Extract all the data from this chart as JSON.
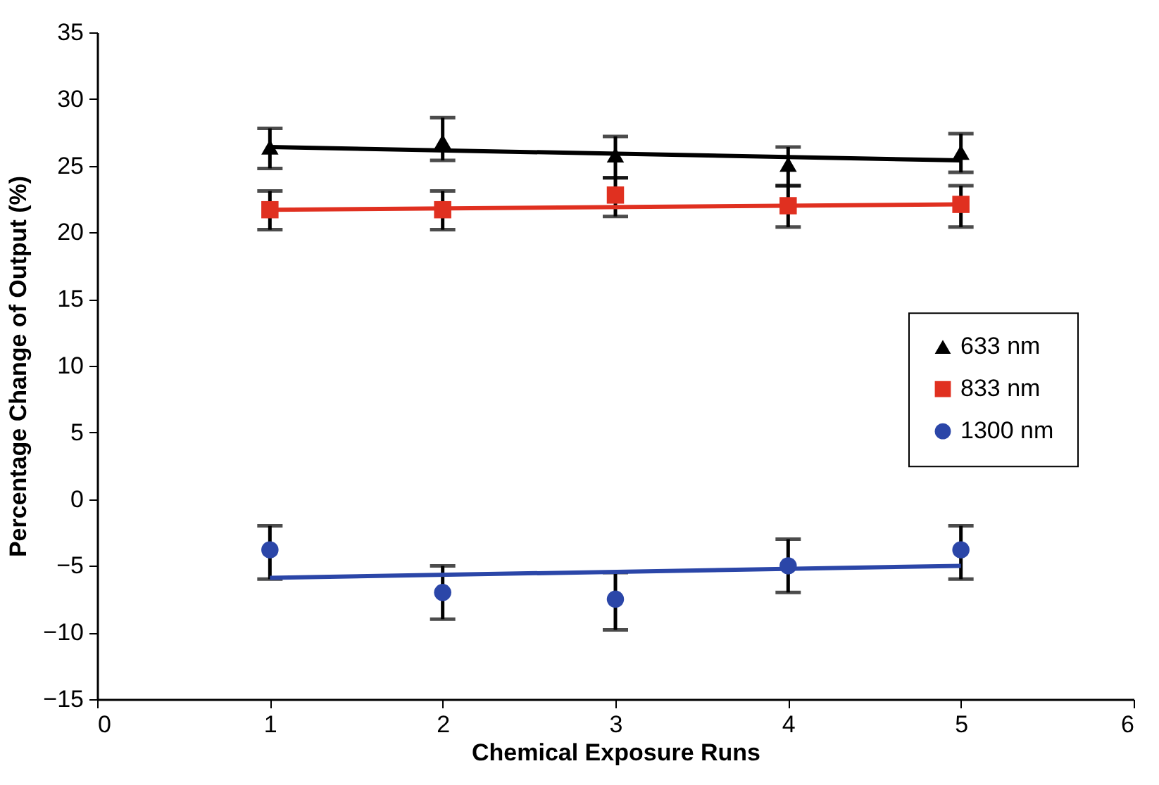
{
  "chart_data": {
    "type": "scatter",
    "xlabel": "Chemical Exposure Runs",
    "ylabel": "Percentage Change of Output (%)",
    "xlim": [
      0,
      6
    ],
    "xticks": [
      0,
      1,
      2,
      3,
      4,
      5,
      6
    ],
    "ylim": [
      -15,
      35
    ],
    "yticks": [
      {
        "value": -15,
        "label": "−15"
      },
      {
        "value": -10,
        "label": "−10"
      },
      {
        "value": -5,
        "label": "−5"
      },
      0,
      5,
      10,
      15,
      20,
      25,
      30,
      35
    ],
    "grid": false,
    "legend": "right",
    "series": [
      {
        "name": "633 nm",
        "marker": "triangle",
        "color": "#000000",
        "x": [
          1,
          2,
          3,
          4,
          5
        ],
        "values": [
          26.4,
          26.8,
          25.8,
          25.1,
          26.0
        ],
        "errors": [
          [
            24.8,
            27.8
          ],
          [
            25.4,
            28.6
          ],
          [
            24.1,
            27.2
          ],
          [
            23.5,
            26.4
          ],
          [
            24.5,
            27.4
          ]
        ]
      },
      {
        "name": "833 nm",
        "marker": "square",
        "color": "#e03020",
        "x": [
          1,
          2,
          3,
          4,
          5
        ],
        "values": [
          21.7,
          21.7,
          22.8,
          22.0,
          22.1
        ],
        "errors": [
          [
            20.2,
            23.1
          ],
          [
            20.2,
            23.1
          ],
          [
            21.2,
            24.1
          ],
          [
            20.4,
            23.5
          ],
          [
            20.4,
            23.5
          ]
        ]
      },
      {
        "name": "1300 nm",
        "marker": "circle",
        "color": "#2b46a8",
        "x": [
          1,
          2,
          3,
          4,
          5
        ],
        "values": [
          -3.8,
          -7.0,
          -7.5,
          -5.0,
          -3.8
        ],
        "errors": [
          [
            -6.0,
            -2.0
          ],
          [
            -9.0,
            -5.0
          ],
          [
            -9.8,
            -5.5
          ],
          [
            -7.0,
            -3.0
          ],
          [
            -6.0,
            -2.0
          ]
        ]
      },
      {
        "type": "line",
        "color": "#000000",
        "x": [
          1,
          5
        ],
        "values": [
          26.4,
          25.4
        ]
      },
      {
        "type": "line",
        "color": "#e03020",
        "x": [
          1,
          5
        ],
        "values": [
          21.7,
          22.1
        ]
      },
      {
        "type": "line",
        "color": "#2b46a8",
        "x": [
          1,
          5
        ],
        "values": [
          -5.9,
          -5.0
        ]
      }
    ]
  }
}
